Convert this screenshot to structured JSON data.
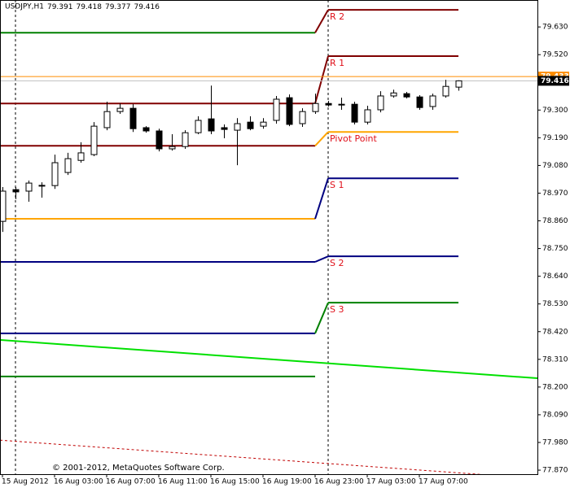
{
  "chart_data": {
    "type": "candlestick",
    "title": "USDJPY,H1",
    "copyright": "© 2001-2012, MetaQuotes Software Corp.",
    "categories": [
      "15 Aug 2012",
      null,
      null,
      null,
      "16 Aug 03:00",
      null,
      null,
      null,
      "16 Aug 07:00",
      null,
      null,
      null,
      "16 Aug 11:00",
      null,
      null,
      null,
      "16 Aug 15:00",
      null,
      null,
      null,
      "16 Aug 19:00",
      null,
      null,
      null,
      "16 Aug 23:00",
      null,
      null,
      null,
      "17 Aug 03:00",
      null,
      null,
      null,
      "17 Aug 07:00",
      null,
      null,
      null
    ],
    "open": [
      78.858,
      78.984,
      78.978,
      79.0,
      79.0,
      79.052,
      79.1,
      79.123,
      79.23,
      79.294,
      79.307,
      79.23,
      79.217,
      79.146,
      79.155,
      79.21,
      79.265,
      79.23,
      79.22,
      79.252,
      79.236,
      79.259,
      79.349,
      79.246,
      79.294,
      79.326,
      79.323,
      79.323,
      79.252,
      79.301,
      79.356,
      79.365,
      79.352,
      79.314,
      79.356,
      79.391
    ],
    "high": [
      78.994,
      78.994,
      79.02,
      79.013,
      79.123,
      79.13,
      79.172,
      79.252,
      79.333,
      79.326,
      79.323,
      79.236,
      79.226,
      79.204,
      79.22,
      79.275,
      79.397,
      79.243,
      79.268,
      79.275,
      79.268,
      79.356,
      79.362,
      79.307,
      79.365,
      79.336,
      79.349,
      79.333,
      79.317,
      79.375,
      79.381,
      79.372,
      79.359,
      79.365,
      79.42,
      79.418
    ],
    "low": [
      78.816,
      78.946,
      78.936,
      78.952,
      78.987,
      79.042,
      79.091,
      79.117,
      79.22,
      79.285,
      79.213,
      79.21,
      79.136,
      79.139,
      79.146,
      79.204,
      79.204,
      79.188,
      79.081,
      79.22,
      79.226,
      79.246,
      79.236,
      79.233,
      79.285,
      79.314,
      79.301,
      79.243,
      79.243,
      79.291,
      79.349,
      79.346,
      79.301,
      79.301,
      79.349,
      79.377
    ],
    "close": [
      78.978,
      78.975,
      79.01,
      79.001,
      79.091,
      79.107,
      79.13,
      79.236,
      79.294,
      79.307,
      79.226,
      79.217,
      79.146,
      79.155,
      79.21,
      79.259,
      79.217,
      79.223,
      79.246,
      79.226,
      79.252,
      79.343,
      79.243,
      79.294,
      79.326,
      79.32,
      79.322,
      79.252,
      79.301,
      79.356,
      79.368,
      79.352,
      79.31,
      79.356,
      79.394,
      79.416
    ],
    "bull_color": "#ffffff",
    "bear_color": "#000000",
    "ylim": [
      77.854,
      79.737
    ],
    "yticks": [
      {
        "value": 79.63,
        "label": "79.630"
      },
      {
        "value": 79.52,
        "label": "79.520"
      },
      {
        "value": 79.3,
        "label": "79.300"
      },
      {
        "value": 79.19,
        "label": "79.190"
      },
      {
        "value": 79.08,
        "label": "79.080"
      },
      {
        "value": 78.97,
        "label": "78.970"
      },
      {
        "value": 78.86,
        "label": "78.860"
      },
      {
        "value": 78.75,
        "label": "78.750"
      },
      {
        "value": 78.64,
        "label": "78.640"
      },
      {
        "value": 78.53,
        "label": "78.530"
      },
      {
        "value": 78.42,
        "label": "78.420"
      },
      {
        "value": 78.31,
        "label": "78.310"
      },
      {
        "value": 78.2,
        "label": "78.200"
      },
      {
        "value": 78.09,
        "label": "78.090"
      },
      {
        "value": 77.98,
        "label": "77.980"
      },
      {
        "value": 77.87,
        "label": "77.870"
      }
    ],
    "pivot_days": [
      {
        "levels": [
          {
            "value": 79.607,
            "color": "#008000"
          },
          {
            "value": 79.326,
            "color": "#800000"
          },
          {
            "value": 79.158,
            "color": "#800000"
          },
          {
            "value": 78.868,
            "color": "#ffa500"
          },
          {
            "value": 78.697,
            "color": "#000080"
          },
          {
            "value": 78.413,
            "color": "#000080"
          },
          {
            "value": 78.242,
            "color": "#008000"
          }
        ]
      },
      {
        "levels": [
          {
            "name": "R 2",
            "value": 79.698,
            "color": "#800000"
          },
          {
            "name": "R 1",
            "value": 79.514,
            "color": "#800000"
          },
          {
            "name": "Pivot Point",
            "value": 79.213,
            "color": "#ffa500"
          },
          {
            "name": "S 1",
            "value": 79.029,
            "color": "#000080"
          },
          {
            "name": "S 2",
            "value": 78.719,
            "color": "#000080"
          },
          {
            "name": "S 3",
            "value": 78.535,
            "color": "#008000"
          }
        ]
      }
    ],
    "level_label_color": "#e0101a",
    "trend_lines": [
      {
        "color": "#00e000",
        "values": [
          78.387,
          78.235
        ]
      },
      {
        "color": "#c00000",
        "dashed": true,
        "values": [
          77.989,
          77.837
        ]
      }
    ],
    "price_lines": [
      {
        "value": 79.433,
        "color": "#ff8c00",
        "text_color": "#ff8c00"
      },
      {
        "value": 79.416,
        "color": "#c0c0c0",
        "text_color": "#000000"
      }
    ]
  }
}
